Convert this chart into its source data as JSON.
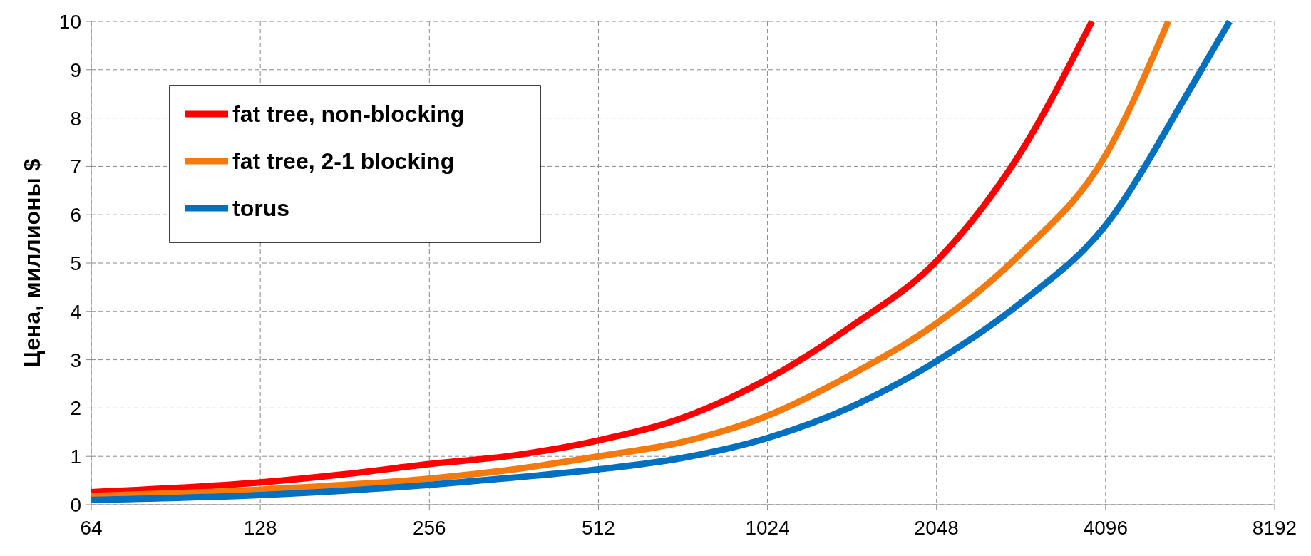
{
  "chart_data": {
    "type": "line",
    "ylabel": "Цена, миллионы $",
    "log": "x",
    "xlim": [
      64,
      8192
    ],
    "xticks": [
      64,
      128,
      256,
      512,
      1024,
      2048,
      4096,
      8192
    ],
    "ylim": [
      0,
      10
    ],
    "yticks": [
      0,
      1,
      2,
      3,
      4,
      5,
      6,
      7,
      8,
      9,
      10
    ],
    "grid": true,
    "legend": "top left",
    "line_style": "solid",
    "series": [
      {
        "name": "fat tree, non-blocking",
        "color": "#ff0000",
        "x": [
          64,
          128,
          181,
          256,
          362,
          512,
          724,
          1024,
          1448,
          2048,
          2896,
          3873
        ],
        "values": [
          0.26,
          0.46,
          0.63,
          0.84,
          1.02,
          1.33,
          1.8,
          2.6,
          3.7,
          5.04,
          7.3,
          10
        ]
      },
      {
        "name": "fat tree, 2-1 blocking",
        "color": "#f47a10",
        "x": [
          64,
          128,
          256,
          362,
          512,
          724,
          1024,
          1448,
          2048,
          2896,
          4096,
          5296
        ],
        "values": [
          0.18,
          0.31,
          0.54,
          0.73,
          1.0,
          1.3,
          1.84,
          2.7,
          3.75,
          5.2,
          7.23,
          10
        ]
      },
      {
        "name": "torus",
        "color": "#0070c0",
        "x": [
          64,
          128,
          256,
          362,
          512,
          724,
          1024,
          1448,
          2048,
          2896,
          4096,
          5793,
          6812
        ],
        "values": [
          0.1,
          0.2,
          0.41,
          0.56,
          0.73,
          0.97,
          1.38,
          2.03,
          2.97,
          4.18,
          5.78,
          8.6,
          10
        ]
      }
    ]
  }
}
